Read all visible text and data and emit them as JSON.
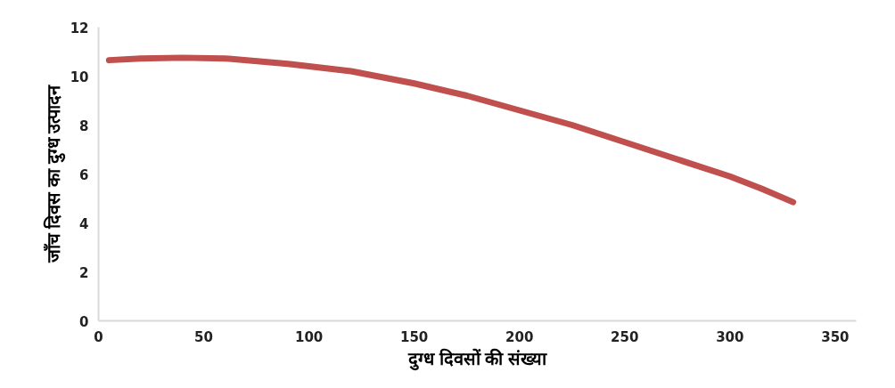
{
  "chart_data": {
    "type": "line",
    "xlabel": "दुग्ध दिवसों की संख्या",
    "ylabel": "जाँच दिवस का दुग्ध उत्पादन",
    "x": [
      5,
      20,
      40,
      60,
      90,
      120,
      150,
      175,
      200,
      225,
      250,
      275,
      300,
      315,
      330
    ],
    "series": [
      {
        "color": "#c0504d",
        "values": [
          10.65,
          10.72,
          10.75,
          10.72,
          10.5,
          10.2,
          9.7,
          9.2,
          8.6,
          8.0,
          7.3,
          6.6,
          5.9,
          5.4,
          4.85
        ]
      }
    ],
    "xlim": [
      0,
      360
    ],
    "ylim": [
      0,
      12
    ],
    "xticks": [
      0,
      50,
      100,
      150,
      200,
      250,
      300,
      350
    ],
    "yticks": [
      0,
      2,
      4,
      6,
      8,
      10,
      12
    ],
    "grid": false,
    "marker": "none",
    "line_style": "solid"
  }
}
